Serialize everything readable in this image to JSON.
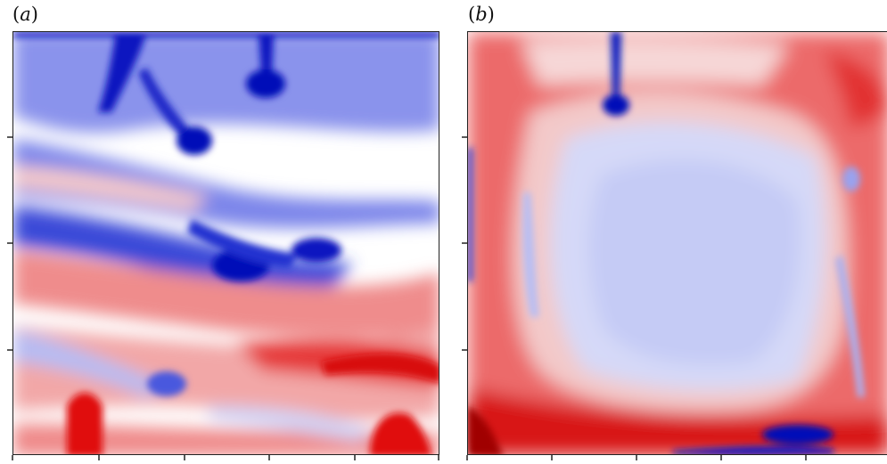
{
  "panels": [
    {
      "label_open": "(",
      "label_letter": "a",
      "label_close": ")"
    },
    {
      "label_open": "(",
      "label_letter": "b",
      "label_close": ")"
    }
  ],
  "colormap": {
    "positive": "#e00000",
    "negative": "#0010c8",
    "neutral": "#ffffff"
  }
}
